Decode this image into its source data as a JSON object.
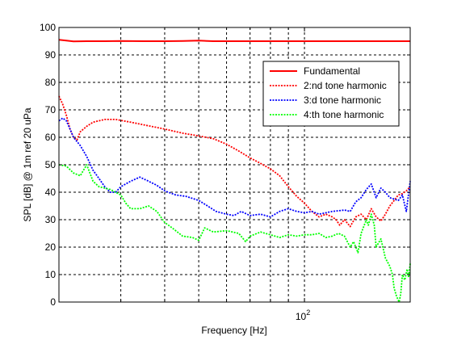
{
  "chart_data": {
    "type": "line",
    "xlabel": "Frequency [Hz]",
    "ylabel": "SPL [dB] @ 1m ref 20 uPa",
    "xscale": "log",
    "xlim": [
      20,
      200
    ],
    "ylim": [
      0,
      100
    ],
    "yticks": [
      0,
      10,
      20,
      30,
      40,
      50,
      60,
      70,
      80,
      90,
      100
    ],
    "xtick_labels": [
      {
        "value": 100,
        "base": "10",
        "exp": "2"
      }
    ],
    "grid": true,
    "legend_position": "top-right",
    "series": [
      {
        "name": "Fundamental",
        "color": "#ff0000",
        "style": "solid",
        "points": [
          [
            20,
            95.5
          ],
          [
            21,
            95.2
          ],
          [
            22,
            94.9
          ],
          [
            24,
            95
          ],
          [
            27,
            95
          ],
          [
            30,
            95.1
          ],
          [
            35,
            95
          ],
          [
            40,
            95
          ],
          [
            45,
            95.1
          ],
          [
            50,
            95.2
          ],
          [
            55,
            95
          ],
          [
            60,
            95
          ],
          [
            70,
            95
          ],
          [
            80,
            95
          ],
          [
            90,
            95
          ],
          [
            100,
            95
          ],
          [
            120,
            95
          ],
          [
            140,
            95
          ],
          [
            160,
            95
          ],
          [
            180,
            95
          ],
          [
            200,
            95
          ]
        ]
      },
      {
        "name": "2:nd tone harmonic",
        "color": "#ff0000",
        "style": "dotted",
        "points": [
          [
            20,
            75
          ],
          [
            20.5,
            72
          ],
          [
            21,
            68
          ],
          [
            21.5,
            63
          ],
          [
            22,
            60
          ],
          [
            22.5,
            59
          ],
          [
            23,
            62
          ],
          [
            24,
            64
          ],
          [
            25,
            65.5
          ],
          [
            27,
            66.5
          ],
          [
            29,
            66.5
          ],
          [
            32,
            65.5
          ],
          [
            35,
            64.5
          ],
          [
            40,
            63
          ],
          [
            45,
            61.5
          ],
          [
            50,
            60.5
          ],
          [
            55,
            59.5
          ],
          [
            60,
            57.5
          ],
          [
            65,
            55
          ],
          [
            70,
            52.5
          ],
          [
            75,
            50.5
          ],
          [
            80,
            48.5
          ],
          [
            85,
            46
          ],
          [
            90,
            42
          ],
          [
            95,
            38.5
          ],
          [
            100,
            36
          ],
          [
            105,
            33
          ],
          [
            110,
            31
          ],
          [
            115,
            32
          ],
          [
            120,
            31
          ],
          [
            123,
            30
          ],
          [
            126,
            28
          ],
          [
            130,
            30
          ],
          [
            135,
            27.5
          ],
          [
            140,
            31
          ],
          [
            145,
            32
          ],
          [
            150,
            30
          ],
          [
            155,
            34
          ],
          [
            160,
            31
          ],
          [
            165,
            29.5
          ],
          [
            170,
            32
          ],
          [
            175,
            35
          ],
          [
            180,
            37
          ],
          [
            185,
            39
          ],
          [
            190,
            39.5
          ],
          [
            195,
            40.5
          ],
          [
            200,
            42
          ]
        ]
      },
      {
        "name": "3:d tone harmonic",
        "color": "#0000ff",
        "style": "dotted",
        "points": [
          [
            20,
            66
          ],
          [
            20.5,
            67
          ],
          [
            21,
            66
          ],
          [
            21.5,
            63
          ],
          [
            22,
            60
          ],
          [
            23,
            57
          ],
          [
            24,
            53
          ],
          [
            25,
            48
          ],
          [
            26,
            45
          ],
          [
            27,
            42
          ],
          [
            28,
            40
          ],
          [
            29,
            40
          ],
          [
            30,
            42
          ],
          [
            32,
            44
          ],
          [
            34,
            45.5
          ],
          [
            36,
            44
          ],
          [
            38,
            42.5
          ],
          [
            40,
            40.5
          ],
          [
            43,
            39
          ],
          [
            46,
            38.5
          ],
          [
            50,
            37
          ],
          [
            53,
            35
          ],
          [
            56,
            33
          ],
          [
            60,
            32
          ],
          [
            63,
            31.5
          ],
          [
            66,
            33
          ],
          [
            70,
            31.5
          ],
          [
            75,
            32
          ],
          [
            80,
            31
          ],
          [
            85,
            33
          ],
          [
            90,
            34
          ],
          [
            95,
            33
          ],
          [
            100,
            32.5
          ],
          [
            105,
            33
          ],
          [
            110,
            32
          ],
          [
            120,
            33
          ],
          [
            130,
            33.5
          ],
          [
            135,
            33
          ],
          [
            140,
            36.5
          ],
          [
            145,
            38
          ],
          [
            150,
            41
          ],
          [
            155,
            43
          ],
          [
            160,
            38
          ],
          [
            165,
            41.5
          ],
          [
            170,
            40
          ],
          [
            175,
            38
          ],
          [
            180,
            37.5
          ],
          [
            185,
            37
          ],
          [
            190,
            39
          ],
          [
            195,
            33
          ],
          [
            200,
            44
          ]
        ]
      },
      {
        "name": "4:th tone harmonic",
        "color": "#00ff00",
        "style": "dotted",
        "points": [
          [
            20,
            50
          ],
          [
            21,
            49.5
          ],
          [
            22,
            47
          ],
          [
            23,
            46
          ],
          [
            24,
            50
          ],
          [
            25,
            44
          ],
          [
            26,
            42
          ],
          [
            27,
            41.5
          ],
          [
            28,
            41
          ],
          [
            30,
            39
          ],
          [
            31,
            36
          ],
          [
            32,
            34
          ],
          [
            34,
            34
          ],
          [
            36,
            35
          ],
          [
            38,
            33
          ],
          [
            40,
            29
          ],
          [
            42,
            27
          ],
          [
            45,
            24
          ],
          [
            48,
            23.5
          ],
          [
            50,
            22.5
          ],
          [
            52,
            27
          ],
          [
            55,
            25.5
          ],
          [
            60,
            26
          ],
          [
            65,
            25
          ],
          [
            68,
            22
          ],
          [
            70,
            24
          ],
          [
            75,
            25.5
          ],
          [
            80,
            24.5
          ],
          [
            85,
            23.5
          ],
          [
            90,
            24.5
          ],
          [
            95,
            24
          ],
          [
            100,
            24.5
          ],
          [
            105,
            24.5
          ],
          [
            110,
            25
          ],
          [
            115,
            23.5
          ],
          [
            120,
            24
          ],
          [
            125,
            25
          ],
          [
            130,
            24
          ],
          [
            135,
            20
          ],
          [
            138,
            22
          ],
          [
            142,
            18
          ],
          [
            145,
            25
          ],
          [
            150,
            30
          ],
          [
            152,
            28
          ],
          [
            155,
            32
          ],
          [
            158,
            28
          ],
          [
            160,
            20
          ],
          [
            165,
            23
          ],
          [
            170,
            16
          ],
          [
            175,
            13
          ],
          [
            178,
            10
          ],
          [
            180,
            5
          ],
          [
            183,
            2
          ],
          [
            186,
            0
          ],
          [
            188,
            3
          ],
          [
            190,
            10
          ],
          [
            193,
            8
          ],
          [
            196,
            12
          ],
          [
            198,
            9
          ],
          [
            200,
            14
          ]
        ]
      }
    ]
  }
}
